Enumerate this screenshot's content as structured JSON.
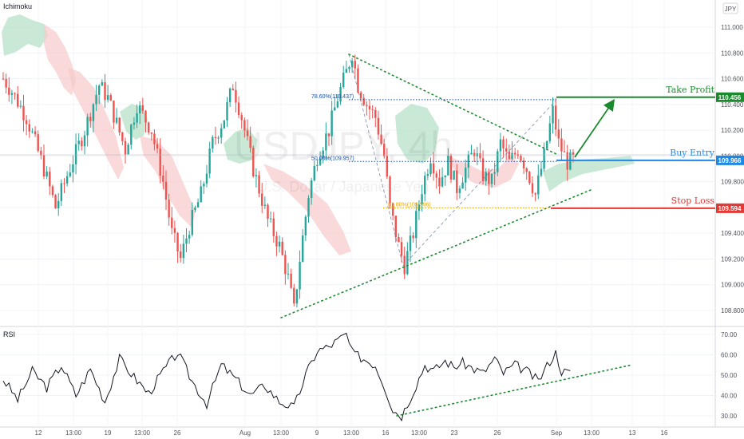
{
  "indicator_label": "Ichimoku",
  "rsi_label": "RSI",
  "currency_badge": "JPY",
  "watermark": {
    "symbol": "USDJPY, 4h",
    "description": "U.S. Dollar / Japanese Yen"
  },
  "colors": {
    "up": "#26a69a",
    "down": "#ef5350",
    "take_profit": "#1b8a2e",
    "buy_entry": "#1e88e5",
    "stop_loss": "#e53935",
    "fib_618": "#f0a500",
    "fib_blue": "#1a4fa3",
    "cloud_green": "#b2dfc4",
    "cloud_red": "#f6c9c9"
  },
  "chart_data": {
    "type": "candlestick",
    "price_axis": {
      "ticks": [
        "111.000",
        "110.800",
        "110.600",
        "110.400",
        "110.200",
        "110.000",
        "109.800",
        "109.600",
        "109.400",
        "109.200",
        "109.000",
        "108.800"
      ]
    },
    "time_axis": {
      "ticks": [
        "12",
        "13:00",
        "19",
        "13:00",
        "26",
        "Aug",
        "13:00",
        "9",
        "13:00",
        "16",
        "13:00",
        "23",
        "26",
        "Sep",
        "13:00",
        "13",
        "16"
      ]
    },
    "rsi_axis": {
      "ticks": [
        "70.00",
        "60.00",
        "50.00",
        "40.00",
        "30.00"
      ]
    },
    "levels": [
      {
        "name": "Take Profit",
        "price": "110.456"
      },
      {
        "name": "Buy Entry",
        "price": "109.966"
      },
      {
        "name": "Stop Loss",
        "price": "109.594"
      }
    ],
    "fib_levels": [
      {
        "label": "78.60%(110.437)",
        "price": 110.437
      },
      {
        "label": "50.00%(109.957)",
        "price": 109.957
      },
      {
        "label": "61.80%(109.596)",
        "price": 109.596
      }
    ],
    "price_path": [
      [
        0,
        110.6
      ],
      [
        3,
        110.5
      ],
      [
        8,
        110.3
      ],
      [
        14,
        109.9
      ],
      [
        18,
        109.6
      ],
      [
        22,
        109.85
      ],
      [
        28,
        110.2
      ],
      [
        33,
        110.55
      ],
      [
        36,
        110.45
      ],
      [
        42,
        110.05
      ],
      [
        46,
        110.4
      ],
      [
        51,
        110.2
      ],
      [
        55,
        109.8
      ],
      [
        58,
        109.4
      ],
      [
        61,
        109.2
      ],
      [
        64,
        109.45
      ],
      [
        68,
        109.7
      ],
      [
        72,
        110.1
      ],
      [
        76,
        110.3
      ],
      [
        79,
        110.55
      ],
      [
        82,
        110.3
      ],
      [
        86,
        109.9
      ],
      [
        91,
        109.5
      ],
      [
        95,
        109.3
      ],
      [
        98,
        109.05
      ],
      [
        100,
        108.8
      ],
      [
        102,
        109.2
      ],
      [
        105,
        109.7
      ],
      [
        108,
        110.0
      ],
      [
        112,
        110.2
      ],
      [
        115,
        110.45
      ],
      [
        118,
        110.65
      ],
      [
        120,
        110.8
      ],
      [
        122,
        110.55
      ],
      [
        125,
        110.4
      ],
      [
        128,
        110.3
      ],
      [
        131,
        110.0
      ],
      [
        133,
        109.6
      ],
      [
        136,
        109.3
      ],
      [
        138,
        109.15
      ],
      [
        141,
        109.4
      ],
      [
        144,
        109.75
      ],
      [
        147,
        110.0
      ],
      [
        150,
        109.8
      ],
      [
        153,
        109.95
      ],
      [
        156,
        109.75
      ],
      [
        159,
        109.9
      ],
      [
        162,
        110.05
      ],
      [
        165,
        109.85
      ],
      [
        168,
        109.8
      ],
      [
        171,
        110.1
      ],
      [
        174,
        109.95
      ],
      [
        177,
        110.05
      ],
      [
        180,
        109.9
      ],
      [
        183,
        109.7
      ],
      [
        186,
        110.0
      ],
      [
        189,
        110.35
      ],
      [
        191,
        110.1
      ],
      [
        194,
        109.95
      ],
      [
        196,
        109.97
      ]
    ],
    "rsi_path": [
      [
        0,
        48
      ],
      [
        5,
        38
      ],
      [
        10,
        52
      ],
      [
        15,
        44
      ],
      [
        20,
        55
      ],
      [
        25,
        40
      ],
      [
        30,
        53
      ],
      [
        35,
        37
      ],
      [
        40,
        58
      ],
      [
        45,
        49
      ],
      [
        50,
        41
      ],
      [
        55,
        52
      ],
      [
        60,
        61
      ],
      [
        65,
        47
      ],
      [
        70,
        36
      ],
      [
        75,
        55
      ],
      [
        80,
        48
      ],
      [
        85,
        40
      ],
      [
        90,
        45
      ],
      [
        95,
        37
      ],
      [
        100,
        34
      ],
      [
        104,
        50
      ],
      [
        108,
        62
      ],
      [
        112,
        64
      ],
      [
        115,
        67
      ],
      [
        118,
        70
      ],
      [
        120,
        61
      ],
      [
        124,
        58
      ],
      [
        128,
        55
      ],
      [
        131,
        45
      ],
      [
        134,
        33
      ],
      [
        137,
        30
      ],
      [
        141,
        42
      ],
      [
        145,
        55
      ],
      [
        148,
        52
      ],
      [
        152,
        57
      ],
      [
        155,
        54
      ],
      [
        158,
        56
      ],
      [
        162,
        53
      ],
      [
        165,
        51
      ],
      [
        169,
        58
      ],
      [
        172,
        51
      ],
      [
        176,
        55
      ],
      [
        180,
        52
      ],
      [
        184,
        47
      ],
      [
        188,
        57
      ],
      [
        190,
        61
      ],
      [
        192,
        52
      ],
      [
        195,
        51
      ]
    ]
  }
}
